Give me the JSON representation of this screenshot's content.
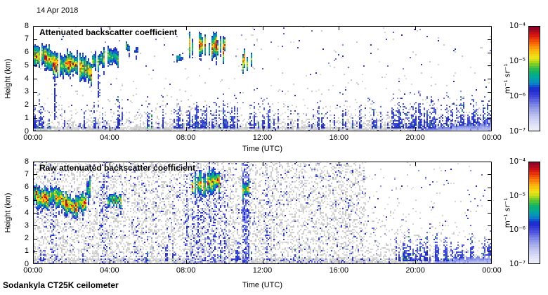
{
  "figure": {
    "date": "14 Apr 2018",
    "footer": "Sodankyla CT25K ceilometer"
  },
  "colors": {
    "background": "#ffffff",
    "axis": "#000000",
    "gray_speckle": [
      "#e0e0e0",
      "#d7d7d7",
      "#cecece",
      "#c6c6c6"
    ],
    "blue_speckle": [
      "#222fc4",
      "#3a46d6",
      "#5a66e2",
      "#8590ec"
    ],
    "green_accent": "#1ca34f",
    "aerosol_band_shades": [
      "#ccd2f6",
      "#b2bbf1",
      "#99a3ec",
      "#7e89e4"
    ],
    "colormap": [
      {
        "p": 0.0,
        "c": "#f2f2fb"
      },
      {
        "p": 0.08,
        "c": "#dcdff7"
      },
      {
        "p": 0.16,
        "c": "#b8bdf0"
      },
      {
        "p": 0.24,
        "c": "#8890e6"
      },
      {
        "p": 0.32,
        "c": "#4a50dc"
      },
      {
        "p": 0.4,
        "c": "#1b24cf"
      },
      {
        "p": 0.46,
        "c": "#0b87c8"
      },
      {
        "p": 0.52,
        "c": "#00a89a"
      },
      {
        "p": 0.58,
        "c": "#18b45e"
      },
      {
        "p": 0.63,
        "c": "#6cc92a"
      },
      {
        "p": 0.67,
        "c": "#c0de1a"
      },
      {
        "p": 0.71,
        "c": "#f2e414"
      },
      {
        "p": 0.78,
        "c": "#fcaa0c"
      },
      {
        "p": 0.85,
        "c": "#f65806"
      },
      {
        "p": 0.92,
        "c": "#d21010"
      },
      {
        "p": 1.0,
        "c": "#7a0130"
      }
    ]
  },
  "chart_data": [
    {
      "type": "heatmap",
      "panel": "top",
      "title": "Attenuated backscatter coefficient",
      "xlabel": "Time (UTC)",
      "ylabel": "Height (km)",
      "x_ticks": [
        "00:00",
        "04:00",
        "08:00",
        "12:00",
        "16:00",
        "20:00",
        "00:00"
      ],
      "x_tick_hours": [
        0,
        4,
        8,
        12,
        16,
        20,
        24
      ],
      "y_ticks": [
        "0",
        "1",
        "2",
        "3",
        "4",
        "5",
        "6",
        "7",
        "8"
      ],
      "xlim_hours": [
        0,
        24
      ],
      "ylim_km": [
        0,
        8
      ],
      "grid": false,
      "legend_position": "right",
      "colorbar": {
        "scale": "log",
        "range": [
          "1e-7",
          "1e-4"
        ],
        "tick_labels": [
          "10⁻⁴",
          "10⁻⁵",
          "10⁻⁶",
          "10⁻⁷"
        ],
        "unit": "m⁻¹ sr⁻¹"
      },
      "features": {
        "noise_profile": "boundary_layer",
        "ground_band_top_km": 0.32,
        "clouds": [
          {
            "t": [
              0.0,
              3.1
            ],
            "h": [
              3.9,
              6.3
            ],
            "intensity": 1.0,
            "descending_base": true,
            "gap": 0.06
          },
          {
            "t": [
              3.15,
              3.8
            ],
            "h": [
              4.4,
              6.4
            ],
            "intensity": 0.75,
            "gap": 0.12
          },
          {
            "t": [
              3.95,
              4.45
            ],
            "h": [
              4.7,
              6.6
            ],
            "intensity": 0.65,
            "gap": 0.15
          },
          {
            "t": [
              4.6,
              5.0
            ],
            "h": [
              5.7,
              7.0
            ],
            "intensity": 0.5,
            "gap": 0.2
          },
          {
            "t": [
              5.35,
              5.65
            ],
            "h": [
              5.8,
              6.6
            ],
            "intensity": 0.45,
            "gap": 0.2
          },
          {
            "t": [
              7.55,
              7.8
            ],
            "h": [
              5.1,
              5.9
            ],
            "intensity": 0.45,
            "gap": 0.2
          },
          {
            "t": [
              8.2,
              10.0
            ],
            "h": [
              5.2,
              7.6
            ],
            "intensity": 0.95,
            "gap": 0.28
          },
          {
            "t": [
              10.95,
              11.45
            ],
            "h": [
              4.4,
              6.3
            ],
            "intensity": 0.85,
            "gap": 0.15
          }
        ],
        "precip_streaks": [
          {
            "t": 1.15,
            "h": [
              0.9,
              4.15
            ]
          },
          {
            "t": 3.42,
            "h": [
              2.55,
              4.3
            ]
          }
        ],
        "blue_stripes": [],
        "spike_regions": [
          {
            "t": [
              0,
              0.6
            ],
            "count": 18,
            "max_top_km": 2.6
          },
          {
            "t": [
              0,
              24
            ],
            "count": 120,
            "max_top_km": 2.9
          },
          {
            "t": [
              7.4,
              10.6
            ],
            "count": 55,
            "max_top_km": 3.1
          },
          {
            "t": [
              18.6,
              24
            ],
            "count": 90,
            "max_top_km": 3.2
          }
        ],
        "aerosol_band": {
          "t_start": 18.6,
          "max_top_km": 0.7
        }
      }
    },
    {
      "type": "heatmap",
      "panel": "bottom",
      "title": "Raw attenuated backscatter coefficient",
      "xlabel": "Time (UTC)",
      "ylabel": "Height (km)",
      "x_ticks": [
        "00:00",
        "04:00",
        "08:00",
        "12:00",
        "16:00",
        "20:00",
        "00:00"
      ],
      "x_tick_hours": [
        0,
        4,
        8,
        12,
        16,
        20,
        24
      ],
      "y_ticks": [
        "0",
        "1",
        "2",
        "3",
        "4",
        "5",
        "6",
        "7",
        "8"
      ],
      "xlim_hours": [
        0,
        24
      ],
      "ylim_km": [
        0,
        8
      ],
      "grid": false,
      "legend_position": "right",
      "colorbar": {
        "scale": "log",
        "range": [
          "1e-7",
          "1e-4"
        ],
        "tick_labels": [
          "10⁻⁴",
          "10⁻⁵",
          "10⁻⁶",
          "10⁻⁷"
        ],
        "unit": "m⁻¹ sr⁻¹"
      },
      "features": {
        "noise_profile": "full_column",
        "noise_fade_t": 17.4,
        "ground_band_top_km": 0.42,
        "clouds": [
          {
            "t": [
              0.0,
              2.75
            ],
            "h": [
              3.9,
              6.0
            ],
            "intensity": 1.0,
            "descending_base": true,
            "gap": 0.06
          },
          {
            "t": [
              2.8,
              3.0
            ],
            "h": [
              4.4,
              7.0
            ],
            "intensity": 0.6,
            "gap": 0.15
          },
          {
            "t": [
              3.9,
              4.6
            ],
            "h": [
              4.3,
              5.7
            ],
            "intensity": 0.7,
            "gap": 0.18
          },
          {
            "t": [
              8.3,
              9.75
            ],
            "h": [
              5.0,
              7.6
            ],
            "intensity": 0.9,
            "gap": 0.3
          },
          {
            "t": [
              10.98,
              11.3
            ],
            "h": [
              4.9,
              6.7
            ],
            "intensity": 0.7,
            "gap": 0.15
          }
        ],
        "precip_streaks": [],
        "blue_stripes": [
          {
            "t": [
              0.9,
              1.35
            ],
            "density": 0.16
          },
          {
            "t": [
              3.5,
              4.05
            ],
            "density": 0.2
          },
          {
            "t": [
              5.25,
              5.5
            ],
            "density": 0.1
          },
          {
            "t": [
              7.9,
              10.25
            ],
            "density": 0.34
          },
          {
            "t": [
              10.95,
              11.3
            ],
            "density": 0.55
          },
          {
            "t": [
              12.15,
              12.45
            ],
            "density": 0.14
          }
        ],
        "spike_regions": [
          {
            "t": [
              0,
              24
            ],
            "count": 45,
            "max_top_km": 2.6
          },
          {
            "t": [
              19,
              24
            ],
            "count": 80,
            "max_top_km": 3.2
          }
        ],
        "aerosol_band": {
          "t_start": 19.0,
          "max_top_km": 0.7
        }
      }
    }
  ]
}
